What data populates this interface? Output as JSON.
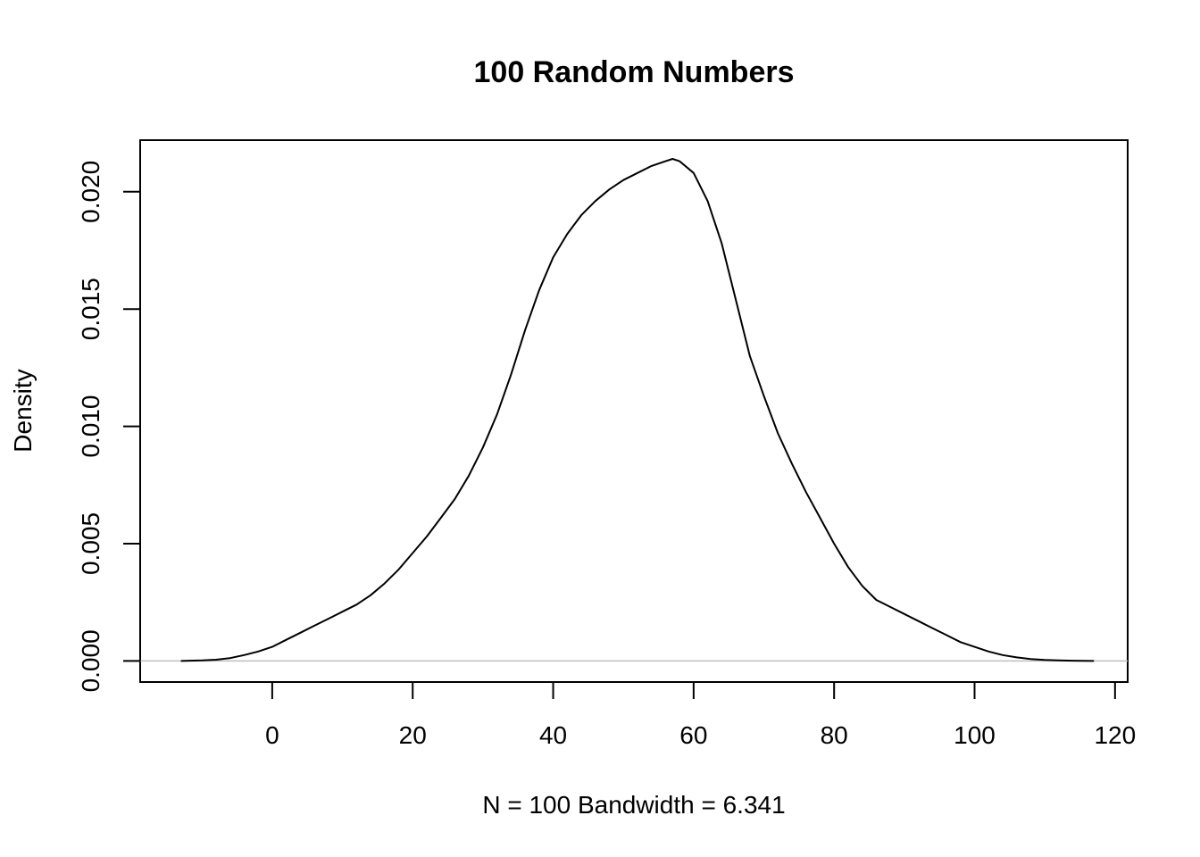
{
  "chart_data": {
    "type": "line",
    "title": "100 Random Numbers",
    "xlabel": "N = 100   Bandwidth = 6.341",
    "ylabel": "Density",
    "xlim": [
      -18.8,
      121.8
    ],
    "ylim": [
      -0.0009,
      0.0222
    ],
    "x_ticks": [
      0,
      20,
      40,
      60,
      80,
      100,
      120
    ],
    "x_tick_labels": [
      "0",
      "20",
      "40",
      "60",
      "80",
      "100",
      "120"
    ],
    "y_ticks": [
      0,
      0.005,
      0.01,
      0.015,
      0.02
    ],
    "y_tick_labels": [
      "0.000",
      "0.005",
      "0.010",
      "0.015",
      "0.020"
    ],
    "baseline": 0,
    "grid": false,
    "colors": {
      "line": "#000000",
      "baseline": "#bebebe"
    },
    "series": [
      {
        "x": [
          -13,
          -10,
          -8,
          -6,
          -4,
          -2,
          0,
          2,
          4,
          6,
          8,
          10,
          12,
          14,
          16,
          18,
          20,
          22,
          24,
          26,
          28,
          30,
          32,
          34,
          36,
          38,
          40,
          42,
          44,
          46,
          48,
          50,
          52,
          54,
          56,
          57,
          58,
          60,
          62,
          64,
          66,
          68,
          70,
          72,
          74,
          76,
          78,
          80,
          82,
          84,
          86,
          88,
          90,
          92,
          94,
          96,
          98,
          100,
          102,
          104,
          106,
          108,
          110,
          112,
          114,
          117
        ],
        "y": [
          0,
          2e-05,
          5e-05,
          0.00012,
          0.00025,
          0.0004,
          0.0006,
          0.0009,
          0.0012,
          0.0015,
          0.0018,
          0.0021,
          0.0024,
          0.0028,
          0.0033,
          0.0039,
          0.0046,
          0.0053,
          0.0061,
          0.0069,
          0.0079,
          0.0091,
          0.0105,
          0.0122,
          0.0141,
          0.0158,
          0.0172,
          0.0182,
          0.019,
          0.0196,
          0.0201,
          0.0205,
          0.0208,
          0.0211,
          0.0213,
          0.0214,
          0.0213,
          0.0208,
          0.0196,
          0.0178,
          0.0154,
          0.013,
          0.0113,
          0.0097,
          0.0084,
          0.0072,
          0.0061,
          0.005,
          0.004,
          0.0032,
          0.0026,
          0.0023,
          0.002,
          0.0017,
          0.0014,
          0.0011,
          0.0008,
          0.0006,
          0.0004,
          0.00025,
          0.00015,
          8e-05,
          4e-05,
          2e-05,
          1e-05,
          0
        ]
      }
    ]
  }
}
